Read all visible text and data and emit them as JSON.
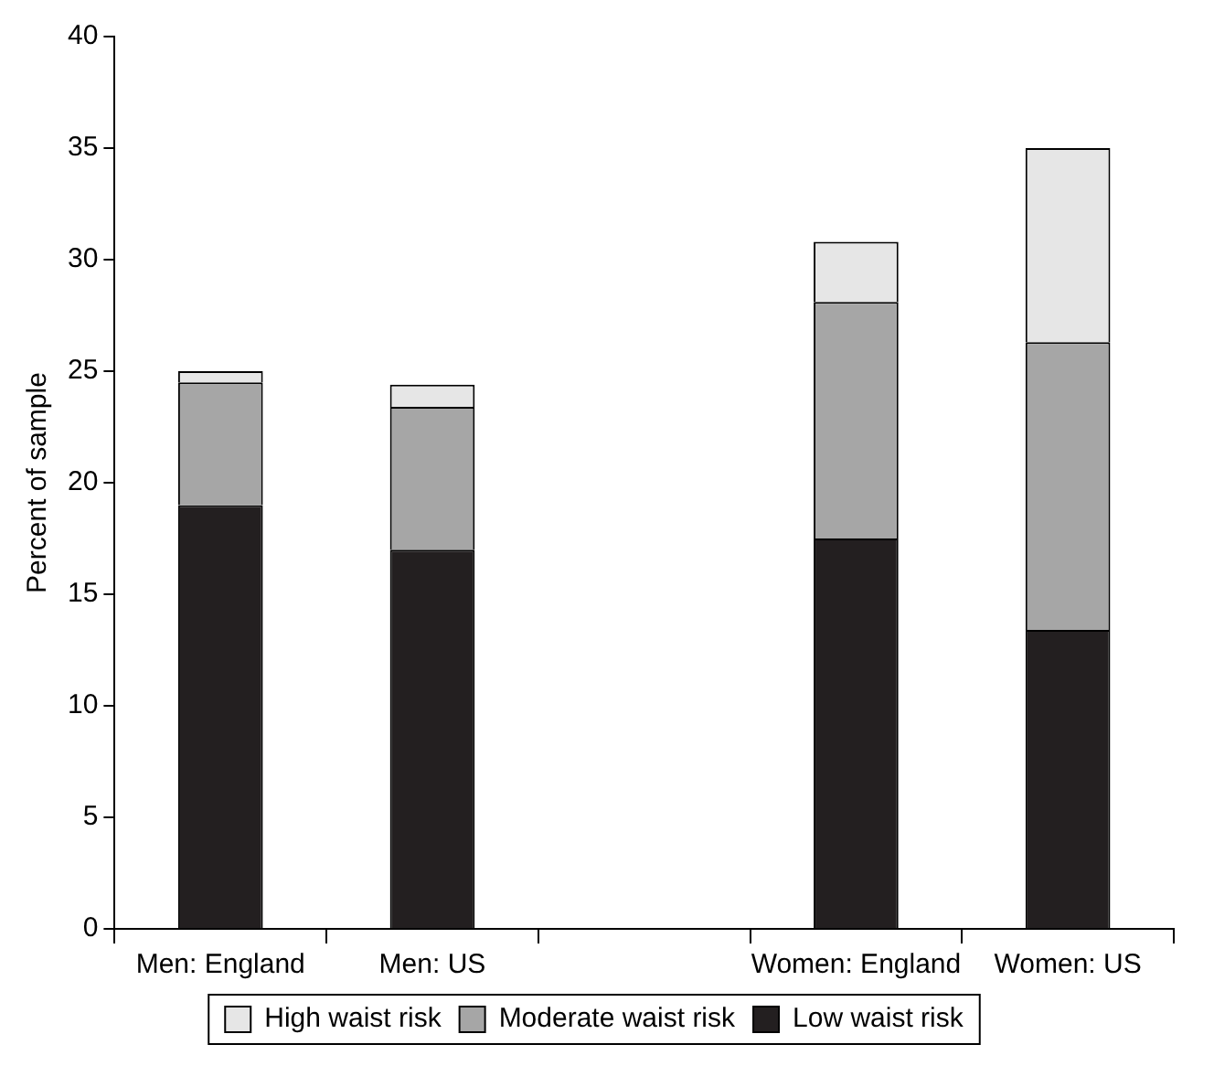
{
  "chart_data": {
    "type": "bar",
    "ylabel": "Percent of sample",
    "categories": [
      "Men: England",
      "Men: US",
      null,
      "Women: England",
      "Women: US"
    ],
    "series": [
      {
        "name": "Low waist risk",
        "color": "#231f20",
        "values": [
          19,
          17,
          null,
          17.5,
          13.4
        ]
      },
      {
        "name": "Moderate waist risk",
        "color": "#a6a6a6",
        "values": [
          5.5,
          6.4,
          null,
          10.6,
          12.9
        ]
      },
      {
        "name": "High waist risk",
        "color": "#e6e6e6",
        "values": [
          0.5,
          1.0,
          null,
          2.7,
          8.7
        ]
      }
    ],
    "stacked": true,
    "ylim": [
      0,
      40
    ],
    "yticks": [
      0,
      5,
      10,
      15,
      20,
      25,
      30,
      35,
      40
    ],
    "grid": false,
    "legend": "bottom"
  }
}
